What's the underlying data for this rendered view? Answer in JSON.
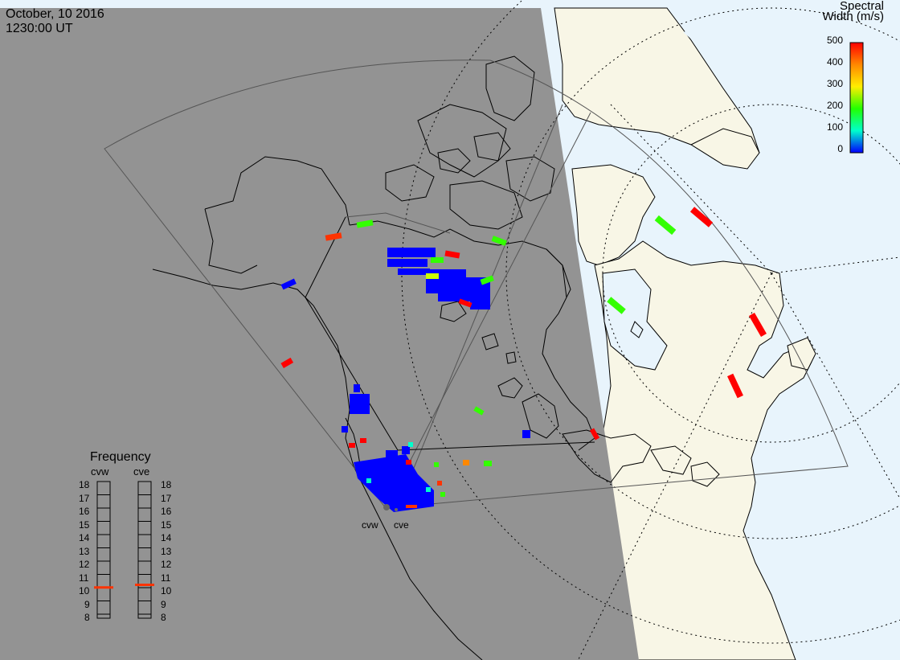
{
  "header": {
    "date": "October, 10 2016",
    "time": "1230:00 UT"
  },
  "colorbar": {
    "title_line1": "Spectral",
    "title_line2": "Width (m/s)",
    "ticks": [
      "500",
      "400",
      "300",
      "200",
      "100",
      "0"
    ],
    "range": [
      0,
      500
    ],
    "gradient_colors": [
      "#ff0000",
      "#ff8800",
      "#ffff00",
      "#00ff00",
      "#00ffcc",
      "#0000ff"
    ]
  },
  "frequency_panel": {
    "title": "Frequency",
    "radars": [
      "cvw",
      "cve"
    ],
    "scale": [
      "18",
      "17",
      "16",
      "15",
      "14",
      "13",
      "12",
      "11",
      "10",
      "9",
      "8"
    ],
    "current_mhz": {
      "cvw": 10.5,
      "cve": 10.7
    },
    "marker_color": "#ff3300"
  },
  "radar_sites": [
    "cvw",
    "cve"
  ],
  "colors": {
    "night": "#939393",
    "day_land": "#f8f6e6",
    "day_ocean": "#e8f4fc",
    "coast": "#000000",
    "fov": "#555555"
  }
}
